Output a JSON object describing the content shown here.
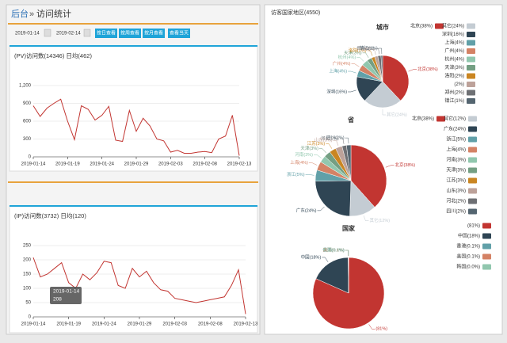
{
  "header": {
    "home": "后台",
    "separator": "»",
    "title": "访问统计"
  },
  "filters": {
    "start": "2019-01-14",
    "end": "2019-02-14",
    "buttons": [
      "按日查看",
      "按周查看",
      "按月查看",
      "查看当天"
    ]
  },
  "panel_title": "访客国家地区(4550)",
  "chart_data": [
    {
      "type": "line",
      "title": "(PV)访问数(14346) 日均(462)",
      "color": "#c23531",
      "categories": [
        "2019-01-14",
        null,
        null,
        null,
        null,
        "2019-01-19",
        null,
        null,
        null,
        null,
        "2019-01-24",
        null,
        null,
        null,
        null,
        "2019-01-29",
        null,
        null,
        null,
        null,
        "2019-02-03",
        null,
        null,
        null,
        null,
        "2019-02-08",
        null,
        null,
        null,
        null,
        "2019-02-13"
      ],
      "values": [
        860,
        680,
        820,
        900,
        970,
        600,
        290,
        860,
        800,
        620,
        700,
        850,
        280,
        260,
        780,
        430,
        650,
        520,
        300,
        270,
        80,
        110,
        60,
        60,
        80,
        90,
        70,
        300,
        350,
        700,
        20
      ],
      "ylim": [
        0,
        1200
      ],
      "yticks": [
        0,
        300,
        600,
        900,
        {
          "value": 1200,
          "label": "1,200"
        }
      ]
    },
    {
      "type": "line",
      "title": "(IP)访问数(3732) 日均(120)",
      "color": "#c23531",
      "categories": [
        "2019-01-14",
        null,
        null,
        null,
        null,
        "2019-01-19",
        null,
        null,
        null,
        null,
        "2019-01-24",
        null,
        null,
        null,
        null,
        "2019-01-29",
        null,
        null,
        null,
        null,
        "2019-02-03",
        null,
        null,
        null,
        null,
        "2019-02-08",
        null,
        null,
        null,
        null,
        "2019-02-13"
      ],
      "values": [
        208,
        140,
        150,
        170,
        190,
        120,
        100,
        150,
        130,
        155,
        195,
        190,
        110,
        100,
        170,
        140,
        160,
        120,
        95,
        90,
        65,
        60,
        55,
        50,
        55,
        60,
        65,
        70,
        110,
        165,
        10
      ],
      "ylim": [
        0,
        250
      ],
      "yticks": [
        0,
        50,
        100,
        150,
        200,
        250
      ],
      "tooltip": {
        "label": "2019-01-14",
        "value": 208
      }
    },
    {
      "type": "pie",
      "title": "城市",
      "categories": [
        "北京(38%)",
        "其它(24%)",
        "深圳(16%)",
        "上海(4%)",
        "广州(4%)",
        "杭州(4%)",
        "天津(3%)",
        "洛阳(2%)",
        "(2%)",
        "郑州(2%)",
        "镇江(1%)"
      ],
      "values": [
        38,
        24,
        16,
        4,
        4,
        4,
        3,
        2,
        2,
        2,
        1
      ],
      "colors": [
        "#c23531",
        "#c4ccd3",
        "#2f4554",
        "#61a0a8",
        "#d48265",
        "#91c7ae",
        "#749f83",
        "#ca8622",
        "#bda29a",
        "#6e7074",
        "#546570"
      ]
    },
    {
      "type": "pie",
      "title": "省",
      "categories": [
        "北京(38%)",
        "其它(12%)",
        "广东(24%)",
        "浙江(5%)",
        "上海(4%)",
        "河南(3%)",
        "天津(3%)",
        "江苏(3%)",
        "山东(3%)",
        "河北(2%)",
        "四川(2%)"
      ],
      "values": [
        38,
        12,
        24,
        5,
        4,
        3,
        3,
        3,
        3,
        2,
        2
      ],
      "colors": [
        "#c23531",
        "#c4ccd3",
        "#2f4554",
        "#61a0a8",
        "#d48265",
        "#91c7ae",
        "#749f83",
        "#ca8622",
        "#bda29a",
        "#6e7074",
        "#546570"
      ]
    },
    {
      "type": "pie",
      "title": "国家",
      "categories": [
        "(81%)",
        "中国(18%)",
        "香港(0.1%)",
        "美国(0.1%)",
        "韩国(0.0%)"
      ],
      "values": [
        81,
        18,
        0.1,
        0.1,
        0.0
      ],
      "colors": [
        "#c23531",
        "#2f4554",
        "#61a0a8",
        "#d48265",
        "#91c7ae"
      ]
    }
  ]
}
